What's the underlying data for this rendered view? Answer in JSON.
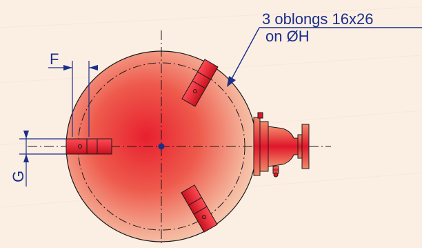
{
  "annotation": {
    "line1": "3 oblongs 16x26",
    "line2": "on  ØH"
  },
  "dimensions": {
    "f_label": "F",
    "g_label": "G"
  },
  "colors": {
    "background": "#fbeee3",
    "ink": "#1a2e8a",
    "red": "#e0162a",
    "sphere_center": "#e8202f",
    "sphere_edge": "#f6c8b0",
    "centerline": "#1a1a1a"
  }
}
